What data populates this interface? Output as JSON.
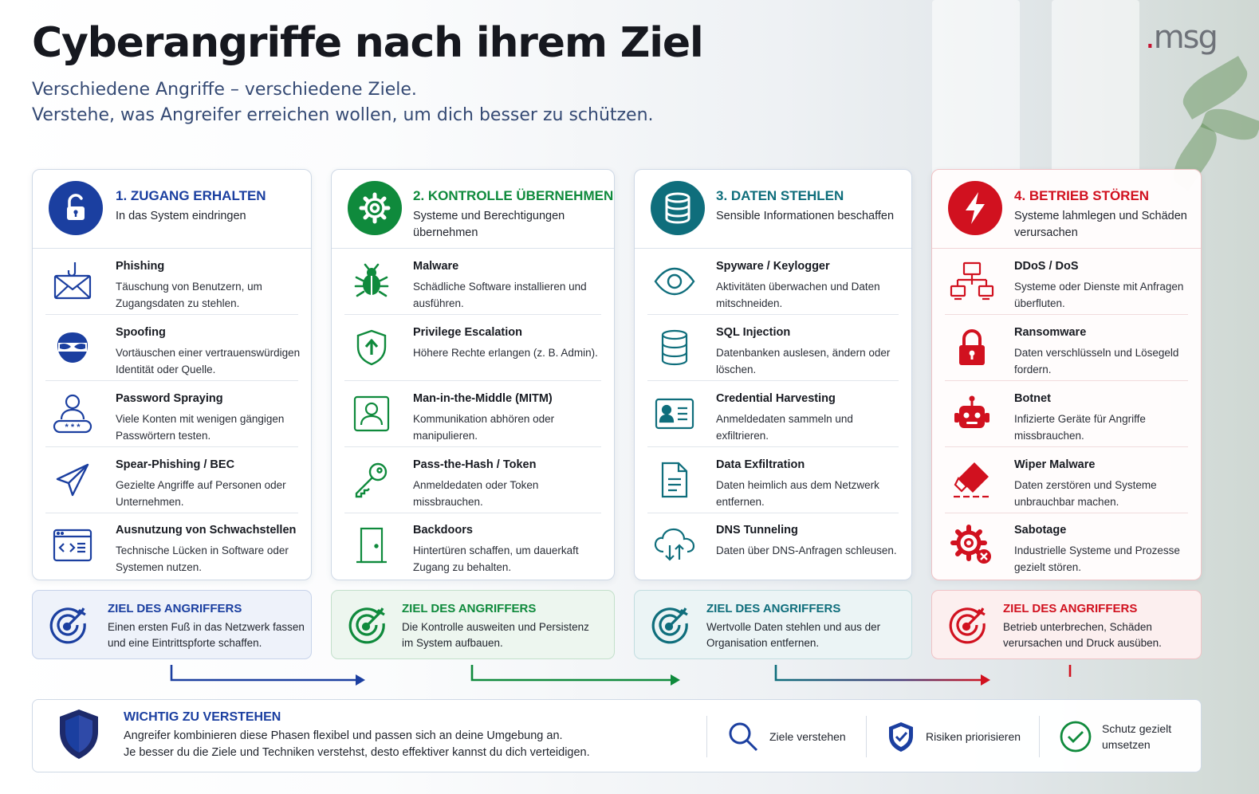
{
  "title": "Cyberangriffe nach ihrem Ziel",
  "subtitle_line1": "Verschiedene Angriffe – verschiedene Ziele.",
  "subtitle_line2": "Verstehe, was Angreifer erreichen wollen, um dich besser zu schützen.",
  "logo": {
    "dot": ".",
    "text": "msg"
  },
  "colors": {
    "blue": "#1b3fa0",
    "green": "#0f8a3c",
    "teal": "#0f6e7c",
    "red": "#d1111f",
    "navy": "#1d2a6b"
  },
  "phases": [
    {
      "title": "1. ZUGANG ERHALTEN",
      "desc": "In das System eindringen",
      "icon": "padlock-open-icon",
      "items": [
        {
          "title": "Phishing",
          "desc": "Täuschung von Benutzern, um Zugangsdaten zu stehlen.",
          "icon": "envelope-hook-icon"
        },
        {
          "title": "Spoofing",
          "desc": "Vortäuschen einer vertrauenswürdigen Identität oder Quelle.",
          "icon": "mask-icon"
        },
        {
          "title": "Password Spraying",
          "desc": "Viele Konten mit wenigen gängigen Passwörtern testen.",
          "icon": "user-password-icon"
        },
        {
          "title": "Spear-Phishing / BEC",
          "desc": "Gezielte Angriffe auf Personen oder Unternehmen.",
          "icon": "paper-plane-icon"
        },
        {
          "title": "Ausnutzung von Schwachstellen",
          "desc": "Technische Lücken in Software oder Systemen nutzen.",
          "icon": "code-window-icon"
        }
      ],
      "goal_title": "ZIEL DES ANGRIFFERS",
      "goal_desc": "Einen ersten Fuß in das Netzwerk fassen und eine Eintrittspforte schaffen."
    },
    {
      "title": "2. KONTROLLE ÜBERNEHMEN",
      "desc": "Systeme und Berechtigungen übernehmen",
      "icon": "gear-icon",
      "items": [
        {
          "title": "Malware",
          "desc": "Schädliche Software installieren und ausführen.",
          "icon": "bug-icon"
        },
        {
          "title": "Privilege Escalation",
          "desc": "Höhere Rechte erlangen (z. B. Admin).",
          "icon": "shield-arrow-up-icon"
        },
        {
          "title": "Man-in-the-Middle (MITM)",
          "desc": "Kommunikation abhören oder manipulieren.",
          "icon": "user-frame-icon"
        },
        {
          "title": "Pass-the-Hash / Token",
          "desc": "Anmeldedaten oder Token missbrauchen.",
          "icon": "key-icon"
        },
        {
          "title": "Backdoors",
          "desc": "Hintertüren schaffen, um dauerkaft Zugang zu behalten.",
          "icon": "door-icon"
        }
      ],
      "goal_title": "ZIEL DES ANGRIFFERS",
      "goal_desc": "Die Kontrolle ausweiten und Persistenz im System aufbauen."
    },
    {
      "title": "3. DATEN STEHLEN",
      "desc": "Sensible Informationen beschaffen",
      "icon": "database-icon",
      "items": [
        {
          "title": "Spyware / Keylogger",
          "desc": "Aktivitäten überwachen und Daten mitschneiden.",
          "icon": "eye-icon"
        },
        {
          "title": "SQL Injection",
          "desc": "Datenbanken auslesen, ändern oder löschen.",
          "icon": "database-outline-icon"
        },
        {
          "title": "Credential Harvesting",
          "desc": "Anmeldedaten sammeln und exfiltrieren.",
          "icon": "id-card-icon"
        },
        {
          "title": "Data Exfiltration",
          "desc": "Daten heimlich aus dem Netzwerk entfernen.",
          "icon": "document-icon"
        },
        {
          "title": "DNS Tunneling",
          "desc": "Daten über DNS-Anfragen schleusen.",
          "icon": "cloud-transfer-icon"
        }
      ],
      "goal_title": "ZIEL DES ANGRIFFERS",
      "goal_desc": "Wertvolle Daten stehlen und aus der Organisation entfernen."
    },
    {
      "title": "4. BETRIEB STÖREN",
      "desc": "Systeme lahmlegen und Schäden verursachen",
      "icon": "lightning-icon",
      "items": [
        {
          "title": "DDoS / DoS",
          "desc": "Systeme oder Dienste mit Anfragen überfluten.",
          "icon": "network-icon"
        },
        {
          "title": "Ransomware",
          "desc": "Daten verschlüsseln und Lösegeld fordern.",
          "icon": "padlock-icon"
        },
        {
          "title": "Botnet",
          "desc": "Infizierte Geräte für Angriffe missbrauchen.",
          "icon": "robot-icon"
        },
        {
          "title": "Wiper Malware",
          "desc": "Daten zerstören und Systeme unbrauchbar machen.",
          "icon": "eraser-icon"
        },
        {
          "title": "Sabotage",
          "desc": "Industrielle Systeme und Prozesse gezielt stören.",
          "icon": "gear-x-icon"
        }
      ],
      "goal_title": "ZIEL DES ANGRIFFERS",
      "goal_desc": "Betrieb unterbrechen, Schäden verursachen und Druck ausüben."
    }
  ],
  "bottom": {
    "title": "WICHTIG ZU VERSTEHEN",
    "line1": "Angreifer kombinieren diese Phasen flexibel und passen sich an deine Umgebung an.",
    "line2": "Je besser du die Ziele und Techniken verstehst, desto effektiver kannst du dich verteidigen.",
    "hints": [
      {
        "label": "Ziele verstehen",
        "icon": "magnifier-icon"
      },
      {
        "label": "Risiken priorisieren",
        "icon": "shield-check-icon"
      },
      {
        "label": "Schutz gezielt umsetzen",
        "icon": "check-circle-icon"
      }
    ]
  }
}
